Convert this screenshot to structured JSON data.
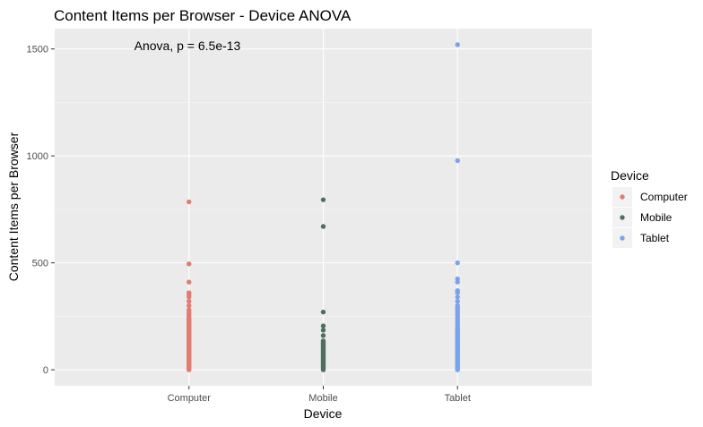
{
  "chart_data": {
    "type": "scatter",
    "title": "Content Items per Browser - Device ANOVA",
    "xlabel": "Device",
    "ylabel": "Content Items per Browser",
    "categories": [
      "Computer",
      "Mobile",
      "Tablet"
    ],
    "y_ticks": [
      0,
      500,
      1000,
      1500
    ],
    "ylim": [
      -75,
      1595
    ],
    "grid": true,
    "annotation": "Anova, p = 6.5e-13",
    "legend": {
      "title": "Device",
      "position": "right"
    },
    "series": [
      {
        "name": "Computer",
        "color": "#E27B70",
        "values": [
          0,
          5,
          10,
          15,
          20,
          25,
          30,
          35,
          40,
          45,
          50,
          55,
          60,
          65,
          70,
          75,
          80,
          85,
          90,
          95,
          100,
          105,
          110,
          115,
          120,
          125,
          130,
          135,
          140,
          145,
          150,
          155,
          160,
          165,
          170,
          175,
          180,
          185,
          190,
          195,
          200,
          205,
          210,
          215,
          220,
          225,
          230,
          235,
          240,
          250,
          260,
          270,
          280,
          300,
          320,
          340,
          350,
          360,
          410,
          495,
          785
        ]
      },
      {
        "name": "Mobile",
        "color": "#4F6E5B",
        "values": [
          0,
          5,
          10,
          15,
          20,
          25,
          30,
          35,
          40,
          45,
          50,
          55,
          60,
          65,
          70,
          75,
          80,
          85,
          90,
          95,
          100,
          105,
          110,
          115,
          120,
          125,
          130,
          135,
          160,
          185,
          205,
          270,
          670,
          795
        ]
      },
      {
        "name": "Tablet",
        "color": "#7BA3EC",
        "values": [
          0,
          5,
          10,
          15,
          20,
          25,
          30,
          35,
          40,
          45,
          50,
          55,
          60,
          65,
          70,
          75,
          80,
          85,
          90,
          95,
          100,
          105,
          110,
          115,
          120,
          125,
          130,
          135,
          140,
          145,
          150,
          155,
          160,
          165,
          170,
          175,
          180,
          185,
          190,
          195,
          200,
          210,
          220,
          230,
          240,
          250,
          260,
          270,
          280,
          290,
          300,
          320,
          340,
          360,
          370,
          410,
          425,
          500,
          978,
          1520
        ]
      }
    ]
  }
}
